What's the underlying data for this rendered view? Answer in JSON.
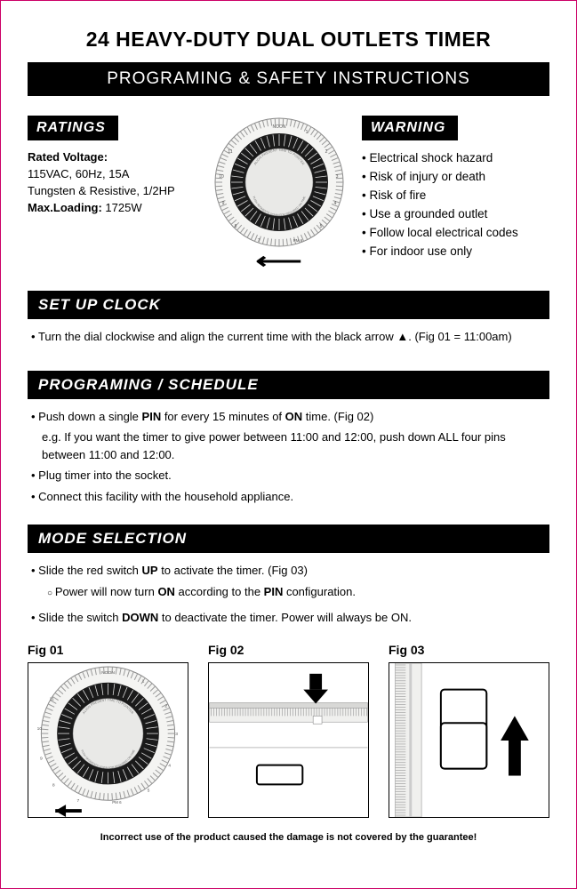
{
  "title": "24 HEAVY-DUTY DUAL OUTLETS TIMER",
  "subtitle": "PROGRAMING & SAFETY INSTRUCTIONS",
  "ratings": {
    "heading": "RATINGS",
    "voltage_label": "Rated Voltage:",
    "voltage_line1": "115VAC, 60Hz, 15A",
    "voltage_line2": "Tungsten & Resistive, 1/2HP",
    "max_label": "Max.Loading:",
    "max_value": "1725W"
  },
  "warning": {
    "heading": "WARNING",
    "items": [
      "Electrical shock hazard",
      "Risk of injury or death",
      "Risk of fire",
      "Use a grounded outlet",
      "Follow local electrical codes",
      "For indoor use only"
    ]
  },
  "setup_clock": {
    "heading": "SET UP CLOCK",
    "text": "Turn the dial clockwise and align the current time with the black arrow ▲. (Fig 01 = 11:00am)"
  },
  "programing": {
    "heading": "PROGRAMING / SCHEDULE",
    "line1a": "Push down a single ",
    "line1b": "PIN",
    "line1c": " for every 15 minutes of ",
    "line1d": "ON",
    "line1e": " time. (Fig 02)",
    "line2": "e.g. If  you want the timer to give power between 11:00 and 12:00, push down ALL four pins between 11:00 and 12:00.",
    "line3": "Plug timer into the socket.",
    "line4": "Connect this facility with the household appliance."
  },
  "mode": {
    "heading": "MODE SELECTION",
    "l1a": "Slide the red switch  ",
    "l1b": "UP",
    "l1c": "  to activate the timer. (Fig 03)",
    "l2a": "Power will now turn ",
    "l2b": "ON",
    "l2c": " according to the ",
    "l2d": "PIN",
    "l2e": " configuration.",
    "l3a": "Slide the switch ",
    "l3b": "DOWN",
    "l3c": " to deactivate the timer. Power will always be ON."
  },
  "figs": {
    "f1": "Fig 01",
    "f2": "Fig 02",
    "f3": "Fig 03"
  },
  "footer": "Incorrect use of the product caused the damage is not covered by the guarantee!",
  "dial": {
    "outer_fill": "#f4f4f2",
    "ring_fill": "#1a1a1a",
    "inner_fill": "#e9e9e7",
    "tick_color": "#bbb",
    "text_color": "#888",
    "top_text1": "ALIGN PRESENT TIME TO POINTER",
    "top_text2": "PUSH SEGMENTS DOWN FOR REQUIRED ON-TIME",
    "hours_top": [
      "NOON",
      "1",
      "2",
      "3",
      "4",
      "5",
      "PM 6"
    ],
    "hours_bot": [
      "7",
      "8",
      "9",
      "10",
      "11",
      "MIDNIGHT"
    ]
  },
  "colors": {
    "black": "#000000",
    "white": "#ffffff",
    "gray": "#bdbdbd",
    "lightgray": "#e6e6e6"
  }
}
